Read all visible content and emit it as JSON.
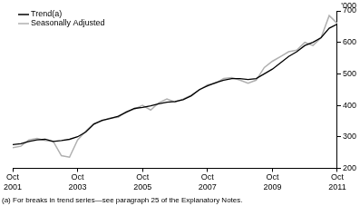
{
  "chart_data": {
    "type": "line",
    "y_label": "'000",
    "annotations": [
      "(a) For breaks in trend series—see paragraph 25 of the Explanatory Notes."
    ],
    "categories": [
      "Oct 2001",
      null,
      null,
      null,
      null,
      null,
      null,
      null,
      "Oct 2003",
      null,
      null,
      null,
      null,
      null,
      null,
      null,
      "Oct 2005",
      null,
      null,
      null,
      null,
      null,
      null,
      null,
      "Oct 2007",
      null,
      null,
      null,
      null,
      null,
      null,
      null,
      "Oct 2009",
      null,
      null,
      null,
      null,
      null,
      null,
      null,
      "Oct 2011"
    ],
    "series": [
      {
        "name": "Trend(a)",
        "color": "#000000",
        "values": [
          275,
          278,
          285,
          290,
          292,
          285,
          288,
          292,
          300,
          315,
          340,
          352,
          358,
          365,
          378,
          390,
          393,
          398,
          405,
          410,
          412,
          418,
          430,
          450,
          462,
          472,
          480,
          485,
          485,
          482,
          485,
          500,
          515,
          535,
          555,
          570,
          590,
          600,
          615,
          645,
          658
        ]
      },
      {
        "name": "Seasonally Adjusted",
        "color": "#b0b0b0",
        "values": [
          265,
          270,
          290,
          295,
          288,
          285,
          240,
          235,
          290,
          318,
          342,
          350,
          360,
          362,
          380,
          388,
          400,
          385,
          408,
          420,
          410,
          420,
          432,
          448,
          465,
          470,
          485,
          488,
          480,
          470,
          480,
          520,
          540,
          555,
          570,
          575,
          600,
          590,
          615,
          685,
          660
        ]
      }
    ],
    "ylim": [
      200,
      700
    ],
    "yticks": [
      200,
      300,
      400,
      500,
      600,
      700
    ],
    "grid": false,
    "legend": "upper left"
  }
}
